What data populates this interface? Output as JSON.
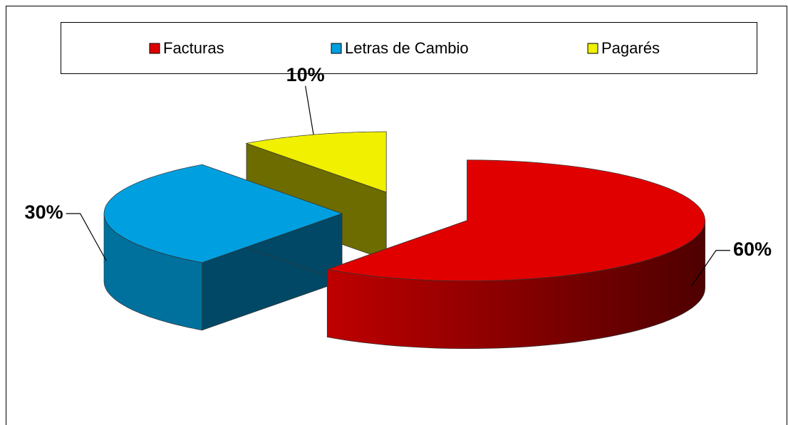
{
  "chart_data": {
    "type": "pie",
    "categories": [
      "Facturas",
      "Letras de Cambio",
      "Pagarés"
    ],
    "values": [
      60,
      30,
      10
    ],
    "value_labels": [
      "60%",
      "30%",
      "10%"
    ],
    "colors": [
      "#e00000",
      "#00a0e0",
      "#f0f000"
    ],
    "legend": "top"
  }
}
